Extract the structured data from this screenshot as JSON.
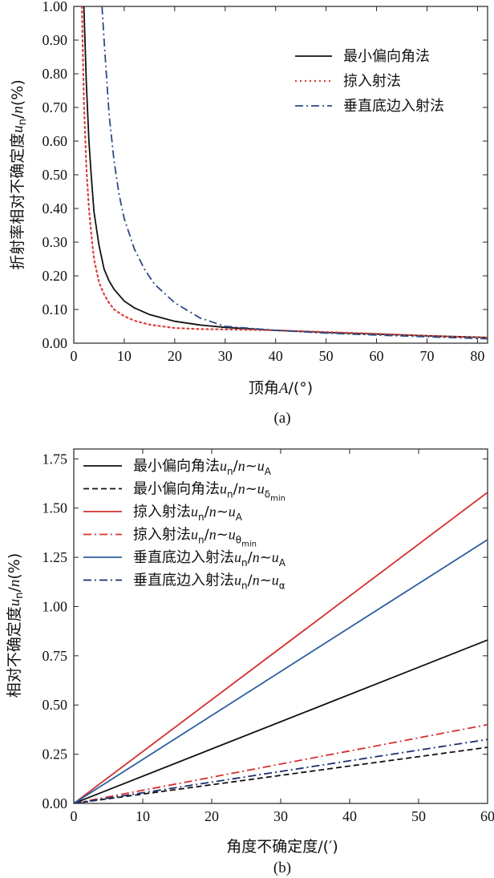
{
  "chart_data": [
    {
      "type": "line",
      "title": "",
      "xlabel": "顶角A/(°)",
      "ylabel": "折射率相对不确定度u_n/n(%)",
      "caption": "(a)",
      "xlim": [
        0,
        82
      ],
      "ylim": [
        0,
        1.0
      ],
      "xticks": [
        0,
        10,
        20,
        30,
        40,
        50,
        60,
        70,
        80
      ],
      "yticks": [
        "0.00",
        "0.10",
        "0.20",
        "0.30",
        "0.40",
        "0.50",
        "0.60",
        "0.70",
        "0.80",
        "0.90",
        "1.00"
      ],
      "grid": false,
      "legend_position": "top-right",
      "series": [
        {
          "name": "最小偏向角法",
          "color": "#111111",
          "style": "solid",
          "x": [
            2,
            2.5,
            3,
            3.5,
            4,
            5,
            6,
            7,
            8,
            10,
            12,
            15,
            20,
            25,
            30,
            40,
            50,
            60,
            70,
            82
          ],
          "y": [
            1.0,
            0.77,
            0.6,
            0.49,
            0.39,
            0.29,
            0.22,
            0.185,
            0.16,
            0.125,
            0.105,
            0.085,
            0.065,
            0.054,
            0.047,
            0.038,
            0.032,
            0.027,
            0.022,
            0.017
          ]
        },
        {
          "name": "掠入射法",
          "color": "#d9413a",
          "style": "dotted",
          "x": [
            1.6,
            2,
            2.5,
            3,
            3.5,
            4,
            5,
            6,
            7,
            8,
            10,
            12,
            15,
            20,
            25,
            30,
            40,
            50,
            60,
            70,
            82
          ],
          "y": [
            1.0,
            0.72,
            0.52,
            0.4,
            0.32,
            0.25,
            0.18,
            0.145,
            0.12,
            0.1,
            0.08,
            0.067,
            0.055,
            0.045,
            0.042,
            0.041,
            0.038,
            0.033,
            0.028,
            0.022,
            0.016
          ]
        },
        {
          "name": "垂直底边入射法",
          "color": "#2b4a8a",
          "style": "dashdot",
          "x": [
            5.6,
            6,
            7,
            8,
            9,
            10,
            12,
            14,
            16,
            20,
            25,
            30,
            40,
            50,
            60,
            70,
            82
          ],
          "y": [
            1.0,
            0.9,
            0.68,
            0.54,
            0.44,
            0.37,
            0.28,
            0.22,
            0.175,
            0.12,
            0.075,
            0.05,
            0.038,
            0.03,
            0.024,
            0.019,
            0.013
          ]
        }
      ]
    },
    {
      "type": "line",
      "title": "",
      "xlabel": "角度不确定度/(′)",
      "ylabel": "相对不确定度u_n/n(%)",
      "caption": "(b)",
      "xlim": [
        0,
        60
      ],
      "ylim": [
        0,
        1.8
      ],
      "xticks": [
        0,
        10,
        20,
        30,
        40,
        50,
        60
      ],
      "yticks": [
        "0.00",
        "0.25",
        "0.50",
        "0.75",
        "1.00",
        "1.25",
        "1.50",
        "1.75"
      ],
      "grid": false,
      "legend_position": "top-left",
      "series": [
        {
          "name": "最小偏向角法u_n/n~u_A",
          "color": "#111111",
          "style": "solid",
          "x": [
            0,
            60
          ],
          "y": [
            0,
            0.83
          ]
        },
        {
          "name": "最小偏向角法u_n/n~u_δmin",
          "color": "#111111",
          "style": "dashed",
          "x": [
            0,
            60
          ],
          "y": [
            0,
            0.285
          ]
        },
        {
          "name": "掠入射法u_n/n~u_A",
          "color": "#d62f2f",
          "style": "solid",
          "x": [
            0,
            60
          ],
          "y": [
            0,
            1.58
          ]
        },
        {
          "name": "掠入射法u_n/n~u_θmin",
          "color": "#d62f2f",
          "style": "dashdot",
          "x": [
            0,
            60
          ],
          "y": [
            0,
            0.4
          ]
        },
        {
          "name": "垂直底边入射法u_n/n~u_A",
          "color": "#2d5fa0",
          "style": "solid",
          "x": [
            0,
            60
          ],
          "y": [
            0,
            1.34
          ]
        },
        {
          "name": "垂直底边入射法u_n/n~u_α",
          "color": "#1f2d6e",
          "style": "dashdot",
          "x": [
            0,
            60
          ],
          "y": [
            0,
            0.325
          ]
        }
      ]
    }
  ]
}
